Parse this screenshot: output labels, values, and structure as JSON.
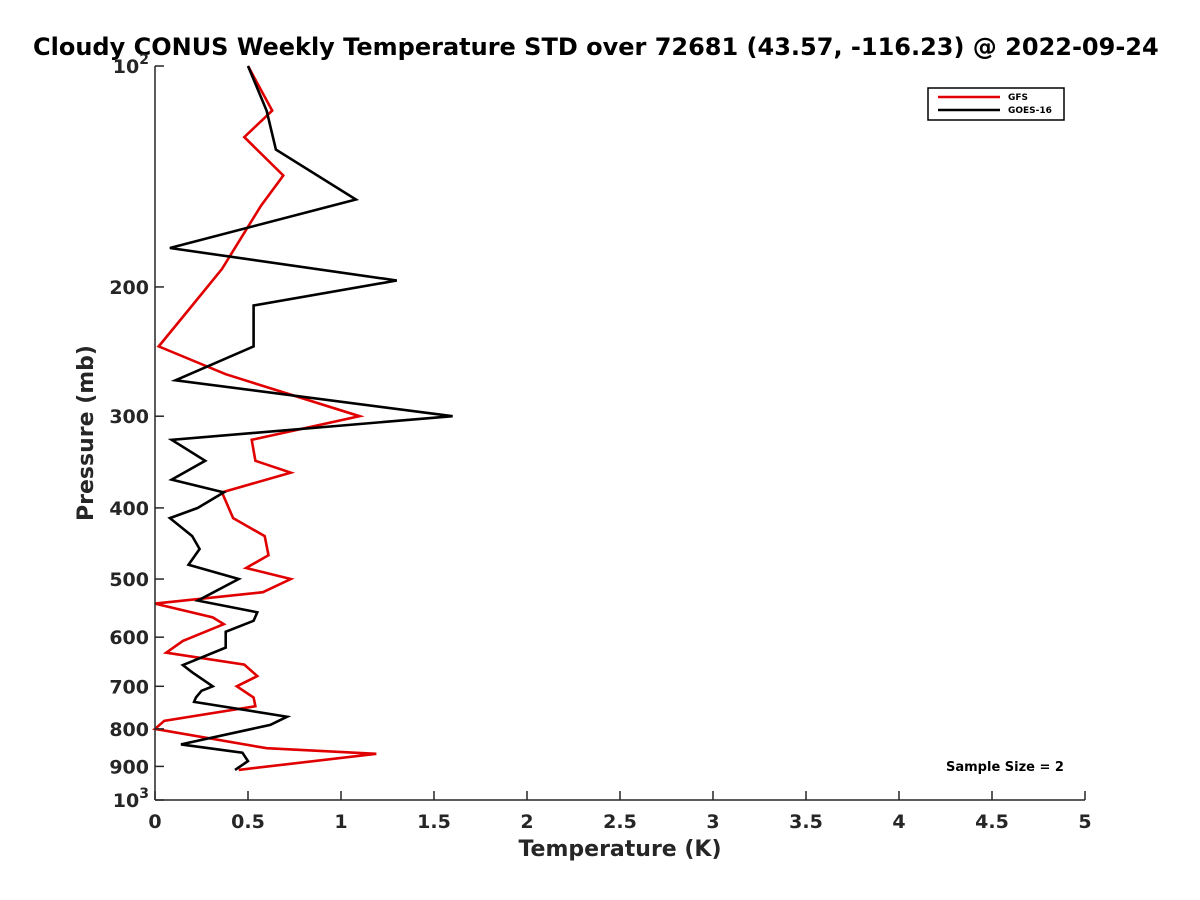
{
  "chart_data": {
    "type": "line",
    "title": "Cloudy CONUS Weekly Temperature STD over 72681 (43.57, -116.23) @ 2022-09-24",
    "xlabel": "Temperature (K)",
    "ylabel": "Pressure (mb)",
    "xlim": [
      0,
      5
    ],
    "ylim": [
      100,
      1000
    ],
    "y_scale": "log",
    "y_reversed": true,
    "x_ticks": [
      "0",
      "0.5",
      "1",
      "1.5",
      "2",
      "2.5",
      "3",
      "3.5",
      "4",
      "4.5",
      "5"
    ],
    "y_ticks": [
      {
        "value": 100,
        "base": "10",
        "exp": "2"
      },
      {
        "value": 200,
        "label": "200"
      },
      {
        "value": 300,
        "label": "300"
      },
      {
        "value": 400,
        "label": "400"
      },
      {
        "value": 500,
        "label": "500"
      },
      {
        "value": 600,
        "label": "600"
      },
      {
        "value": 700,
        "label": "700"
      },
      {
        "value": 800,
        "label": "800"
      },
      {
        "value": 900,
        "label": "900"
      },
      {
        "value": 1000,
        "base": "10",
        "exp": "3"
      }
    ],
    "grid": false,
    "legend_position": "top-right",
    "series": [
      {
        "name": "GFS",
        "color": "#e00000",
        "points": [
          [
            0.5,
            100
          ],
          [
            0.63,
            115
          ],
          [
            0.48,
            125
          ],
          [
            0.69,
            141
          ],
          [
            0.57,
            155
          ],
          [
            0.36,
            189
          ],
          [
            0.2,
            212
          ],
          [
            0.02,
            241
          ],
          [
            0.38,
            263
          ],
          [
            1.1,
            300
          ],
          [
            0.52,
            323
          ],
          [
            0.54,
            345
          ],
          [
            0.73,
            358
          ],
          [
            0.36,
            381
          ],
          [
            0.42,
            413
          ],
          [
            0.59,
            437
          ],
          [
            0.61,
            464
          ],
          [
            0.49,
            483
          ],
          [
            0.73,
            500
          ],
          [
            0.58,
            521
          ],
          [
            0.0,
            540
          ],
          [
            0.31,
            564
          ],
          [
            0.37,
            576
          ],
          [
            0.15,
            607
          ],
          [
            0.06,
            630
          ],
          [
            0.48,
            654
          ],
          [
            0.55,
            678
          ],
          [
            0.44,
            700
          ],
          [
            0.53,
            725
          ],
          [
            0.54,
            745
          ],
          [
            0.05,
            780
          ],
          [
            0.0,
            800
          ],
          [
            0.6,
            850
          ],
          [
            1.19,
            865
          ],
          [
            0.45,
            910
          ]
        ]
      },
      {
        "name": "GOES-16",
        "color": "#000000",
        "points": [
          [
            0.5,
            100
          ],
          [
            0.6,
            115
          ],
          [
            0.65,
            130
          ],
          [
            1.08,
            152
          ],
          [
            0.08,
            177
          ],
          [
            1.3,
            196
          ],
          [
            0.53,
            212
          ],
          [
            0.53,
            241
          ],
          [
            0.11,
            268
          ],
          [
            1.6,
            300
          ],
          [
            0.09,
            323
          ],
          [
            0.27,
            345
          ],
          [
            0.09,
            366
          ],
          [
            0.37,
            381
          ],
          [
            0.23,
            400
          ],
          [
            0.08,
            413
          ],
          [
            0.2,
            437
          ],
          [
            0.24,
            455
          ],
          [
            0.18,
            478
          ],
          [
            0.45,
            500
          ],
          [
            0.23,
            535
          ],
          [
            0.55,
            555
          ],
          [
            0.53,
            570
          ],
          [
            0.38,
            590
          ],
          [
            0.38,
            620
          ],
          [
            0.15,
            655
          ],
          [
            0.2,
            670
          ],
          [
            0.31,
            700
          ],
          [
            0.25,
            710
          ],
          [
            0.22,
            725
          ],
          [
            0.21,
            735
          ],
          [
            0.71,
            770
          ],
          [
            0.62,
            790
          ],
          [
            0.14,
            840
          ],
          [
            0.47,
            862
          ],
          [
            0.5,
            885
          ],
          [
            0.43,
            910
          ]
        ]
      }
    ],
    "annotations": [
      {
        "text": "Sample Size = 2",
        "position": "bottom-right"
      }
    ]
  }
}
